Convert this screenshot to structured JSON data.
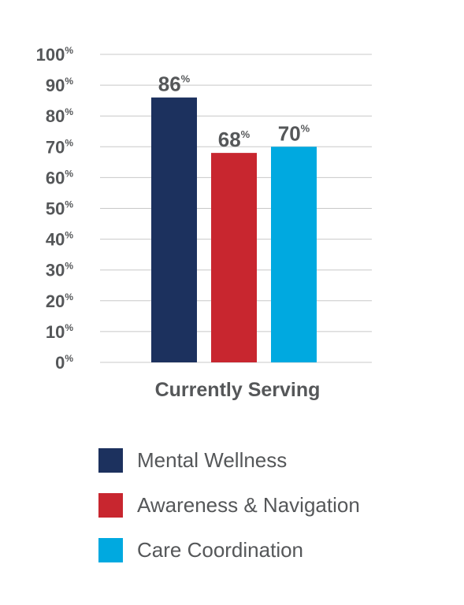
{
  "chart_data": {
    "type": "bar",
    "categories": [
      "Currently Serving"
    ],
    "series": [
      {
        "name": "Mental Wellness",
        "values": [
          86
        ],
        "color": "#1c315e"
      },
      {
        "name": "Awareness & Navigation",
        "values": [
          68
        ],
        "color": "#c8262f"
      },
      {
        "name": "Care Coordination",
        "values": [
          70
        ],
        "color": "#00a9e0"
      }
    ],
    "ylim": [
      0,
      100
    ],
    "yticks": [
      0,
      10,
      20,
      30,
      40,
      50,
      60,
      70,
      80,
      90,
      100
    ],
    "value_suffix": "%",
    "grid": true,
    "legend": "bottom",
    "title": "",
    "xlabel": "",
    "ylabel": ""
  }
}
